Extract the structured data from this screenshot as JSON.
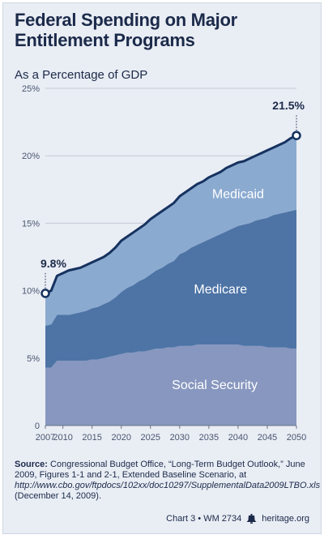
{
  "title": "Federal Spending on Major Entitlement Programs",
  "subtitle": "As a Percentage of GDP",
  "chart_data": {
    "type": "area",
    "stacked": true,
    "title": "Federal Spending on Major Entitlement Programs",
    "subtitle": "As a Percentage of GDP",
    "xlabel": "",
    "ylabel": "",
    "xlim": [
      2007,
      2050
    ],
    "ylim": [
      0,
      25
    ],
    "x_ticks": [
      "2007",
      "2010",
      "2015",
      "2020",
      "2025",
      "2030",
      "2035",
      "2040",
      "2045",
      "2050"
    ],
    "x_tick_values": [
      2007,
      2010,
      2015,
      2020,
      2025,
      2030,
      2035,
      2040,
      2045,
      2050
    ],
    "y_ticks": [
      "0",
      "5%",
      "10%",
      "15%",
      "20%",
      "25%"
    ],
    "y_tick_values": [
      0,
      5,
      10,
      15,
      20,
      25
    ],
    "grid": "horizontal",
    "x": [
      2007,
      2008,
      2009,
      2010,
      2011,
      2012,
      2013,
      2014,
      2015,
      2016,
      2017,
      2018,
      2019,
      2020,
      2021,
      2022,
      2023,
      2024,
      2025,
      2026,
      2027,
      2028,
      2029,
      2030,
      2031,
      2032,
      2033,
      2034,
      2035,
      2036,
      2037,
      2038,
      2039,
      2040,
      2041,
      2042,
      2043,
      2044,
      2045,
      2046,
      2047,
      2048,
      2049,
      2050
    ],
    "series": [
      {
        "name": "Social Security",
        "color": "#8797bf",
        "values": [
          4.3,
          4.3,
          4.8,
          4.8,
          4.8,
          4.8,
          4.8,
          4.8,
          4.9,
          4.9,
          5.0,
          5.1,
          5.2,
          5.3,
          5.4,
          5.4,
          5.5,
          5.5,
          5.6,
          5.7,
          5.7,
          5.8,
          5.8,
          5.9,
          5.9,
          5.9,
          6.0,
          6.0,
          6.0,
          6.0,
          6.0,
          6.0,
          6.0,
          6.0,
          5.9,
          5.9,
          5.9,
          5.9,
          5.8,
          5.8,
          5.8,
          5.8,
          5.7,
          5.7
        ]
      },
      {
        "name": "Medicare",
        "color": "#4e74a6",
        "values": [
          3.1,
          3.2,
          3.4,
          3.4,
          3.4,
          3.5,
          3.6,
          3.7,
          3.8,
          3.9,
          4.0,
          4.1,
          4.3,
          4.6,
          4.8,
          5.0,
          5.2,
          5.4,
          5.6,
          5.8,
          6.0,
          6.2,
          6.4,
          6.8,
          7.0,
          7.3,
          7.4,
          7.6,
          7.8,
          8.0,
          8.2,
          8.4,
          8.6,
          8.8,
          9.0,
          9.1,
          9.3,
          9.4,
          9.6,
          9.8,
          9.9,
          10.0,
          10.2,
          10.3
        ]
      },
      {
        "name": "Medicaid",
        "color": "#8baad0",
        "values": [
          2.4,
          2.5,
          2.9,
          3.1,
          3.3,
          3.3,
          3.3,
          3.4,
          3.4,
          3.5,
          3.5,
          3.6,
          3.7,
          3.8,
          3.8,
          3.9,
          3.9,
          4.0,
          4.1,
          4.1,
          4.2,
          4.2,
          4.3,
          4.3,
          4.4,
          4.4,
          4.5,
          4.5,
          4.6,
          4.6,
          4.6,
          4.7,
          4.7,
          4.7,
          4.7,
          4.8,
          4.8,
          4.9,
          5.0,
          5.0,
          5.1,
          5.2,
          5.4,
          5.5
        ]
      }
    ],
    "total_line": {
      "color": "#16325f",
      "values": [
        9.8,
        10.0,
        11.1,
        11.3,
        11.5,
        11.6,
        11.7,
        11.9,
        12.1,
        12.3,
        12.5,
        12.8,
        13.2,
        13.7,
        14.0,
        14.3,
        14.6,
        14.9,
        15.3,
        15.6,
        15.9,
        16.2,
        16.5,
        17.0,
        17.3,
        17.6,
        17.9,
        18.1,
        18.4,
        18.6,
        18.8,
        19.1,
        19.3,
        19.5,
        19.6,
        19.8,
        20.0,
        20.2,
        20.4,
        20.6,
        20.8,
        21.0,
        21.3,
        21.5
      ]
    },
    "annotations": [
      {
        "label": "9.8%",
        "x": 2007,
        "y": 9.8
      },
      {
        "label": "21.5%",
        "x": 2050,
        "y": 21.5
      }
    ]
  },
  "source": {
    "label": "Source:",
    "text_1": " Congressional Budget Office, “Long-Term Budget Outlook,” June 2009, Figures 1-1 and 2-1, Extended Baseline Scenario, at ",
    "url": "http://www.cbo.gov/ftpdocs/102xx/doc10297/SupplementalData2009LTBO.xls",
    "text_2": " (December 14, 2009)."
  },
  "footer": {
    "chart_label": "Chart 3 • WM 2734",
    "site": "heritage.org",
    "icon": "liberty-bell-icon"
  }
}
